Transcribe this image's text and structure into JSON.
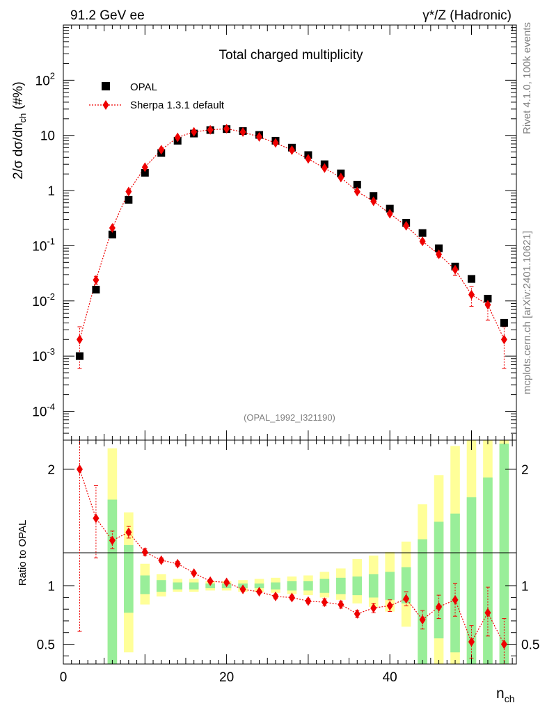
{
  "header": {
    "left": "91.2 GeV ee",
    "right": "γ*/Z (Hadronic)",
    "side_top": "Rivet 4.1.0,  100k events",
    "side_bottom": "mcplots.cern.ch [arXiv:2401.10621]"
  },
  "colors": {
    "data": "#000000",
    "mc": "#ee0000",
    "band_inner": "#99ee99",
    "band_outer": "#ffff99"
  },
  "chart_data": [
    {
      "type": "scatter",
      "title": "Total charged multiplicity",
      "ylabel_parts": {
        "main": "2/σ  dσ/dn",
        "sub": "ch",
        "tail": " (#%)"
      },
      "xlabel": "",
      "xlim": [
        0,
        55.5
      ],
      "ylim": [
        3e-05,
        1000
      ],
      "yscale": "log",
      "yticks": [
        {
          "base": "10",
          "exp": "-4",
          "value": 0.0001
        },
        {
          "base": "10",
          "exp": "-3",
          "value": 0.001
        },
        {
          "base": "10",
          "exp": "-2",
          "value": 0.01
        },
        {
          "base": "10",
          "exp": "-1",
          "value": 0.1
        },
        {
          "text": "1",
          "value": 1
        },
        {
          "text": "10",
          "value": 10
        },
        {
          "base": "10",
          "exp": "2",
          "value": 100
        }
      ],
      "legend": [
        {
          "name": "OPAL",
          "marker": "square"
        },
        {
          "name": "Sherpa 1.3.1 default",
          "marker": "diamond"
        }
      ],
      "legend_position": "top-left",
      "annotation": "(OPAL_1992_I321190)",
      "x": [
        2,
        4,
        6,
        8,
        10,
        12,
        14,
        16,
        18,
        20,
        22,
        24,
        26,
        28,
        30,
        32,
        34,
        36,
        38,
        40,
        42,
        44,
        46,
        48,
        50,
        52,
        54
      ],
      "series": [
        {
          "name": "OPAL",
          "values": [
            0.001,
            0.016,
            0.16,
            0.68,
            2.1,
            4.8,
            8.0,
            10.8,
            12.5,
            13.0,
            12.0,
            10.2,
            8.0,
            6.0,
            4.4,
            3.0,
            2.05,
            1.28,
            0.8,
            0.47,
            0.26,
            0.17,
            0.09,
            0.042,
            0.025,
            0.011,
            0.004
          ]
        },
        {
          "name": "Sherpa 1.3.1 default",
          "values": [
            0.002,
            0.024,
            0.21,
            0.96,
            2.65,
            5.5,
            9.2,
            11.6,
            12.6,
            13.2,
            11.5,
            9.4,
            7.3,
            5.4,
            3.75,
            2.55,
            1.72,
            0.96,
            0.64,
            0.38,
            0.23,
            0.12,
            0.07,
            0.037,
            0.013,
            0.0085,
            0.002
          ],
          "err_low": [
            0.0014,
            0.004,
            0.01,
            0.03,
            0.06,
            0.1,
            0.15,
            0.17,
            0.2,
            0.2,
            0.2,
            0.17,
            0.15,
            0.12,
            0.1,
            0.08,
            0.05,
            0.04,
            0.03,
            0.025,
            0.015,
            0.01,
            0.008,
            0.008,
            0.005,
            0.004,
            0.0014
          ],
          "err_high": [
            0.0014,
            0.004,
            0.01,
            0.03,
            0.06,
            0.1,
            0.15,
            0.17,
            0.2,
            0.2,
            0.2,
            0.17,
            0.15,
            0.12,
            0.1,
            0.08,
            0.05,
            0.04,
            0.03,
            0.025,
            0.015,
            0.01,
            0.008,
            0.008,
            0.005,
            0.004,
            0.0014
          ]
        }
      ]
    },
    {
      "type": "scatter",
      "title": "",
      "ylabel": "Ratio to OPAL",
      "xlabel_parts": {
        "main": "n",
        "sub": "ch"
      },
      "xlim": [
        0,
        55.5
      ],
      "ylim": [
        0.33,
        2.25
      ],
      "xticks": [
        0,
        20,
        40
      ],
      "yticks": [
        0.5,
        1,
        2
      ],
      "reference": 1,
      "x": [
        2,
        4,
        6,
        8,
        10,
        12,
        14,
        16,
        18,
        20,
        22,
        24,
        26,
        28,
        30,
        32,
        34,
        36,
        38,
        40,
        42,
        44,
        46,
        48,
        50,
        52,
        54
      ],
      "band_inner_low": [
        null,
        null,
        0.0,
        0.77,
        0.93,
        0.95,
        0.97,
        0.97,
        0.98,
        0.98,
        0.98,
        0.98,
        0.97,
        0.96,
        0.96,
        0.94,
        0.93,
        0.92,
        0.9,
        0.88,
        0.85,
        0.0,
        0.55,
        0.43,
        0.0,
        0.0,
        0.0
      ],
      "band_inner_high": [
        null,
        null,
        1.74,
        1.35,
        1.09,
        1.05,
        1.03,
        1.03,
        1.02,
        1.02,
        1.02,
        1.02,
        1.03,
        1.04,
        1.04,
        1.06,
        1.07,
        1.08,
        1.1,
        1.12,
        1.16,
        1.4,
        1.55,
        1.62,
        1.76,
        1.93,
        2.22
      ],
      "band_outer_low": [
        null,
        null,
        0.0,
        0.43,
        0.84,
        0.91,
        0.95,
        0.95,
        0.96,
        0.96,
        0.95,
        0.95,
        0.94,
        0.93,
        0.92,
        0.9,
        0.88,
        0.85,
        0.82,
        0.78,
        0.65,
        0.0,
        0.0,
        0.0,
        0.0,
        0.0,
        0.0
      ],
      "band_outer_high": [
        null,
        null,
        2.18,
        1.63,
        1.19,
        1.1,
        1.06,
        1.06,
        1.04,
        1.04,
        1.05,
        1.06,
        1.07,
        1.08,
        1.09,
        1.12,
        1.15,
        1.23,
        1.26,
        1.29,
        1.38,
        1.7,
        1.95,
        2.2,
        2.25,
        2.25,
        2.25
      ],
      "series": [
        {
          "name": "Sherpa 1.3.1 default",
          "values": [
            2.0,
            1.58,
            1.39,
            1.46,
            1.29,
            1.22,
            1.19,
            1.11,
            1.04,
            1.03,
            0.97,
            0.95,
            0.91,
            0.9,
            0.87,
            0.86,
            0.84,
            0.76,
            0.81,
            0.83,
            0.89,
            0.71,
            0.82,
            0.88,
            0.52,
            0.77,
            0.5
          ],
          "err_low": [
            1.39,
            0.34,
            0.07,
            0.05,
            0.03,
            0.02,
            0.02,
            0.015,
            0.015,
            0.015,
            0.015,
            0.015,
            0.02,
            0.02,
            0.02,
            0.03,
            0.03,
            0.03,
            0.04,
            0.05,
            0.06,
            0.08,
            0.1,
            0.14,
            0.14,
            0.2,
            0.2
          ],
          "err_high": [
            0.3,
            0.28,
            0.08,
            0.05,
            0.03,
            0.02,
            0.02,
            0.015,
            0.015,
            0.015,
            0.015,
            0.015,
            0.02,
            0.02,
            0.02,
            0.03,
            0.03,
            0.03,
            0.04,
            0.05,
            0.06,
            0.08,
            0.1,
            0.14,
            0.14,
            0.22,
            0.22
          ]
        }
      ]
    }
  ]
}
